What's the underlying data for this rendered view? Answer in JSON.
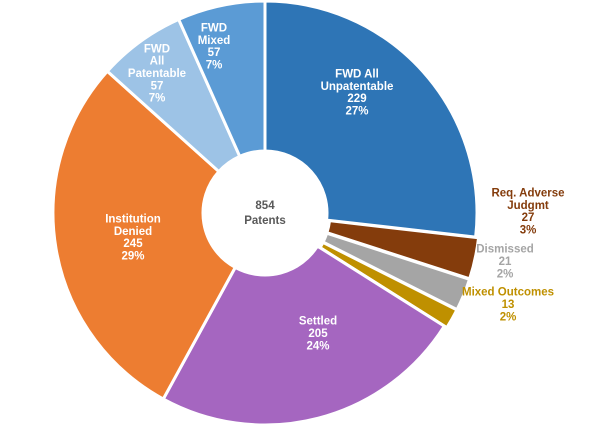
{
  "chart_data": {
    "type": "pie",
    "subtype": "donut",
    "center_label": [
      "854",
      "Patents"
    ],
    "total": 854,
    "start_angle_deg": 0,
    "direction": "clockwise",
    "slices": [
      {
        "label": [
          "FWD All",
          "Unpatentable"
        ],
        "value": 229,
        "percent": "27%",
        "color": "#2e75b6",
        "label_color": "#ffffff"
      },
      {
        "label": [
          "Req. Adverse",
          "Judgmt"
        ],
        "value": 27,
        "percent": "3%",
        "color": "#843c0c",
        "label_color": "#843c0c"
      },
      {
        "label": [
          "Dismissed"
        ],
        "value": 21,
        "percent": "2%",
        "color": "#a5a5a5",
        "label_color": "#a5a5a5"
      },
      {
        "label": [
          "Mixed Outcomes"
        ],
        "value": 13,
        "percent": "2%",
        "color": "#bf9000",
        "label_color": "#bf9000"
      },
      {
        "label": [
          "Settled"
        ],
        "value": 205,
        "percent": "24%",
        "color": "#a566c0",
        "label_color": "#ffffff"
      },
      {
        "label": [
          "Institution",
          "Denied"
        ],
        "value": 245,
        "percent": "29%",
        "color": "#ed7d31",
        "label_color": "#ffffff"
      },
      {
        "label": [
          "FWD",
          "All",
          "Patentable"
        ],
        "value": 57,
        "percent": "7%",
        "color": "#9dc3e6",
        "label_color": "#ffffff"
      },
      {
        "label": [
          "FWD",
          "Mixed"
        ],
        "value": 57,
        "percent": "7%",
        "color": "#5b9bd5",
        "label_color": "#ffffff"
      }
    ]
  }
}
